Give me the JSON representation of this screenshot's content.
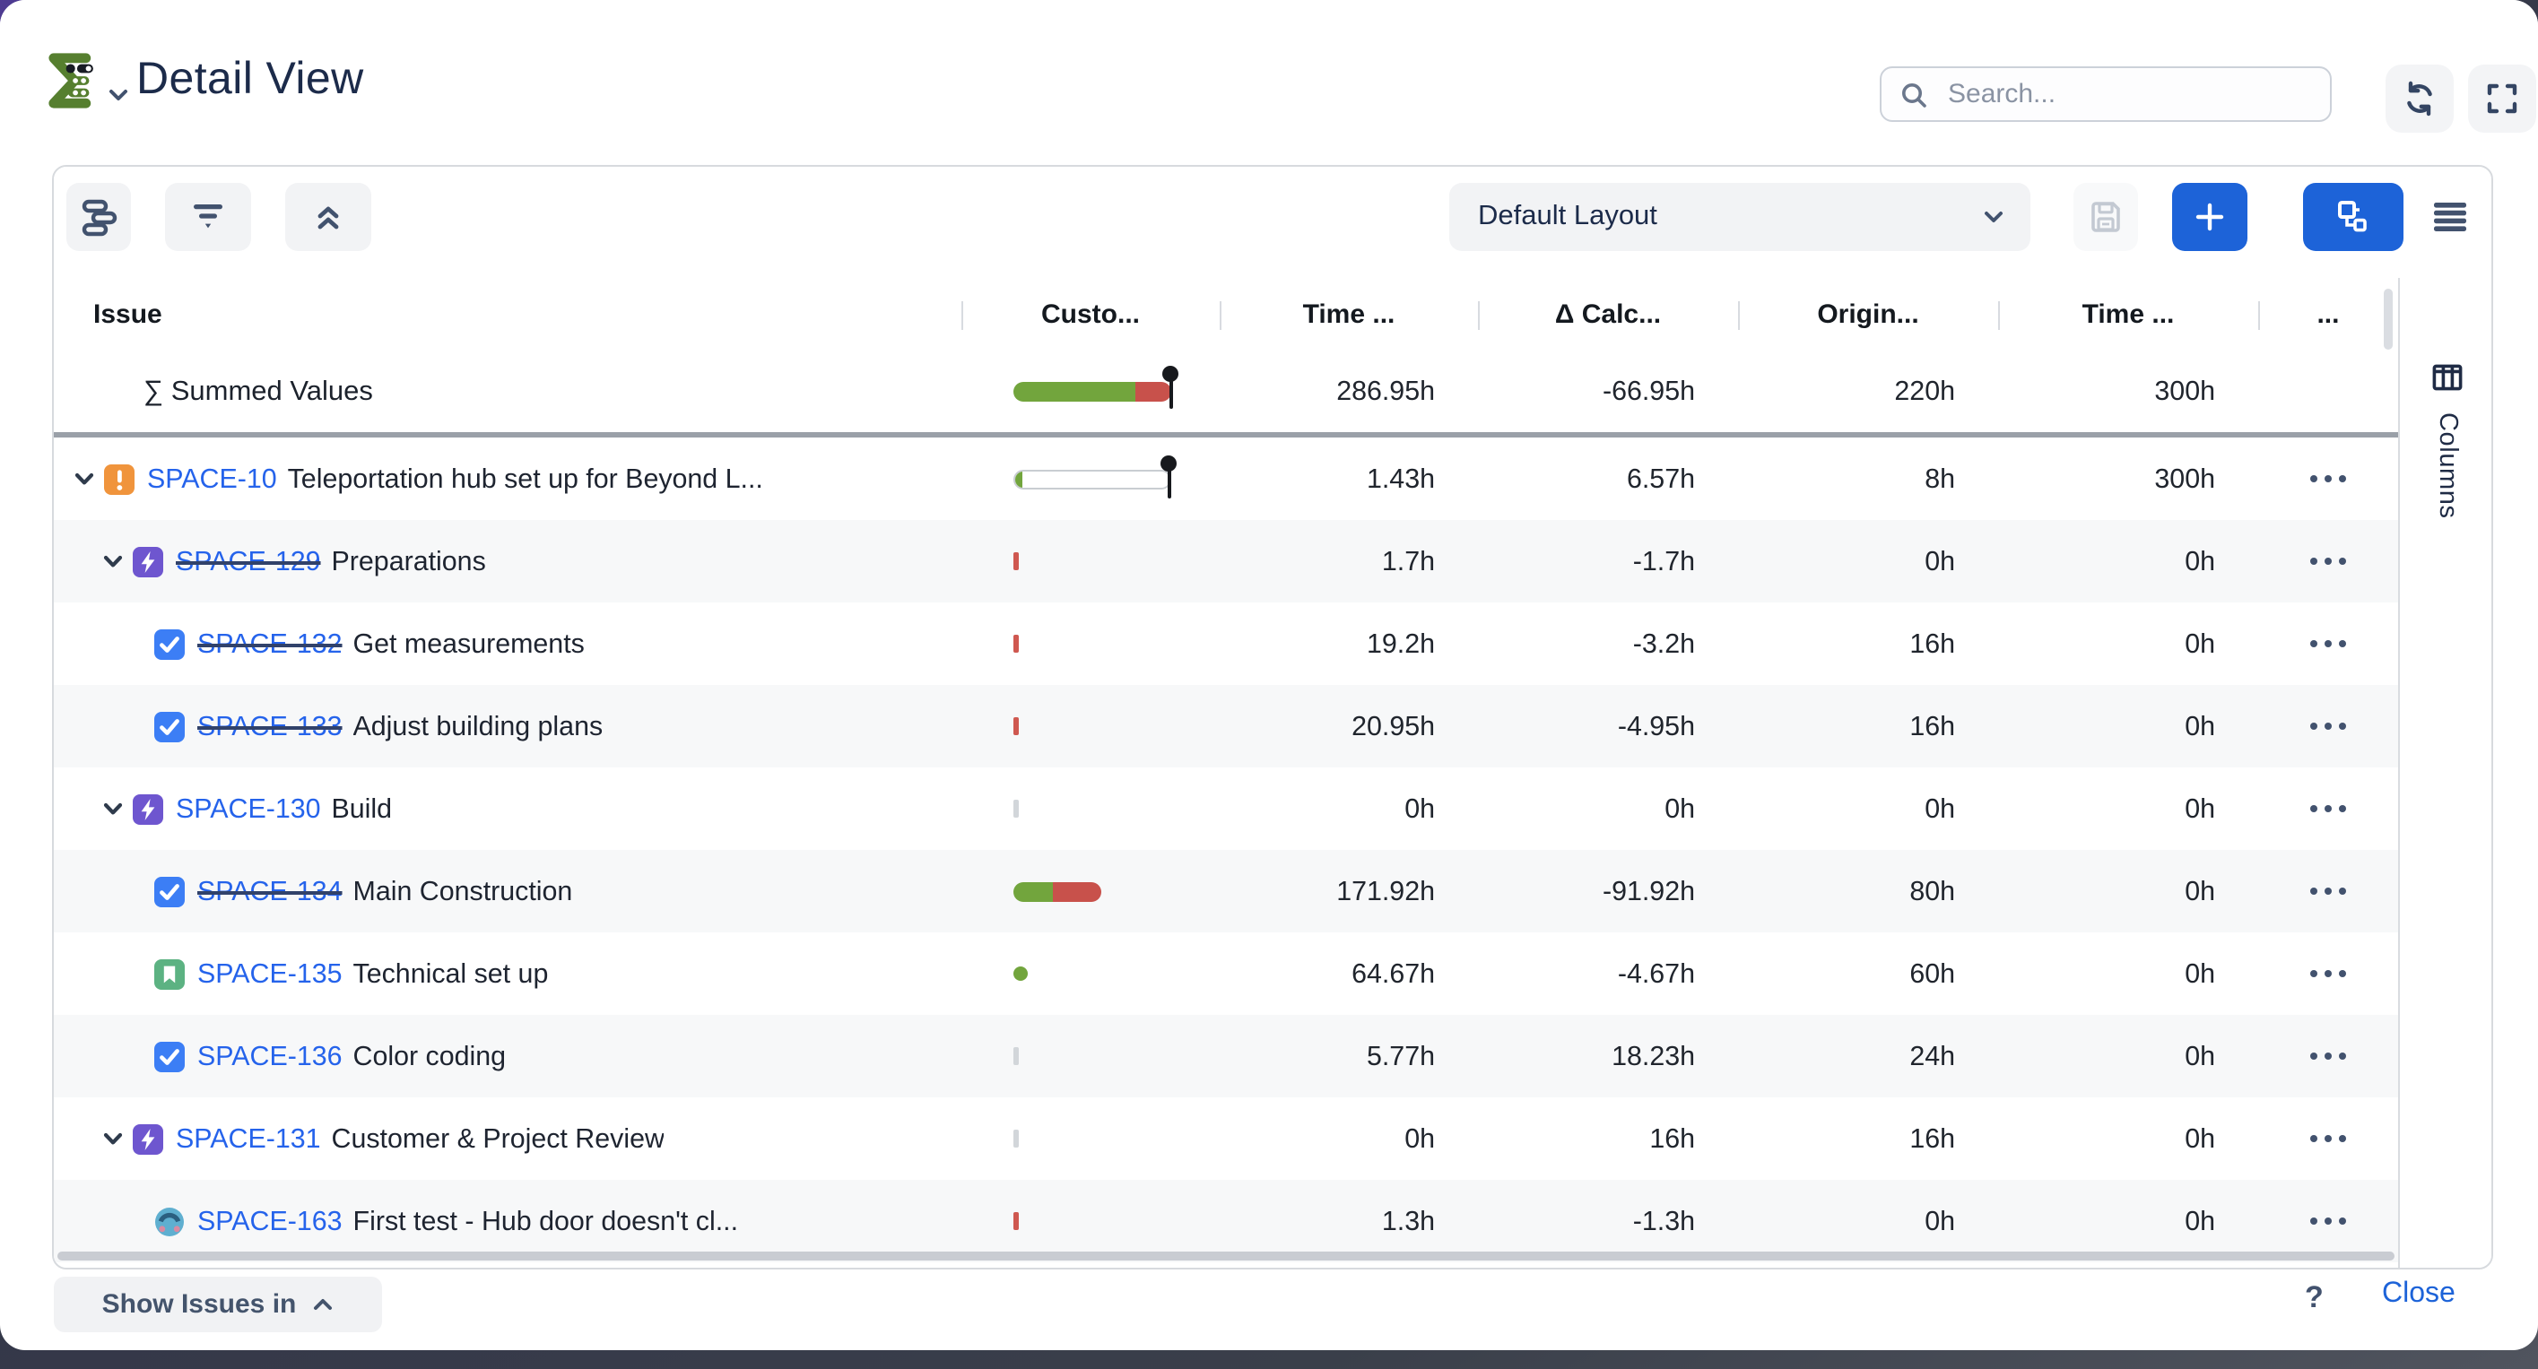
{
  "window": {
    "title": "Detail View"
  },
  "header": {
    "search_placeholder": "Search...",
    "icons": [
      "app-logo",
      "chevron-down-icon",
      "search-icon",
      "refresh-icon",
      "fullscreen-icon"
    ]
  },
  "toolbar": {
    "layout_selector_value": "Default Layout",
    "icons": [
      "group-by-icon",
      "filter-icon",
      "collapse-all-icon",
      "chevron-down-icon",
      "save-layout-icon",
      "add-item-icon",
      "tree-view-icon",
      "list-view-icon"
    ]
  },
  "table": {
    "columns": [
      "Issue",
      "Custo...",
      "Time ...",
      "Δ Calc...",
      "Origin...",
      "Time ...",
      "..."
    ],
    "summed_row": {
      "label": "∑ Summed Values",
      "bar": {
        "kind": "bar",
        "width": 88,
        "green_pct": 77,
        "red_pct": 23,
        "pin": true
      },
      "values": [
        "286.95h",
        "-66.95h",
        "220h",
        "300h"
      ]
    },
    "rows": [
      {
        "key": "SPACE-10",
        "summary": "Teleportation hub set up for Beyond L...",
        "level": 1,
        "icon": "warning",
        "done": false,
        "expandable": true,
        "indicator": {
          "kind": "bar",
          "width": 88,
          "green_pct": 5,
          "empty": true,
          "pin": true
        },
        "values": [
          "1.43h",
          "6.57h",
          "8h",
          "300h"
        ]
      },
      {
        "key": "SPACE-129",
        "summary": "Preparations",
        "level": 2,
        "icon": "bolt",
        "done": true,
        "expandable": true,
        "indicator": {
          "kind": "tick",
          "color": "red"
        },
        "values": [
          "1.7h",
          "-1.7h",
          "0h",
          "0h"
        ]
      },
      {
        "key": "SPACE-132",
        "summary": "Get measurements",
        "level": 3,
        "icon": "check",
        "done": true,
        "expandable": false,
        "indicator": {
          "kind": "tick",
          "color": "red"
        },
        "values": [
          "19.2h",
          "-3.2h",
          "16h",
          "0h"
        ]
      },
      {
        "key": "SPACE-133",
        "summary": "Adjust building plans",
        "level": 3,
        "icon": "check",
        "done": true,
        "expandable": false,
        "indicator": {
          "kind": "tick",
          "color": "red"
        },
        "values": [
          "20.95h",
          "-4.95h",
          "16h",
          "0h"
        ]
      },
      {
        "key": "SPACE-130",
        "summary": "Build",
        "level": 2,
        "icon": "bolt",
        "done": false,
        "expandable": true,
        "indicator": {
          "kind": "tick",
          "color": "gray"
        },
        "values": [
          "0h",
          "0h",
          "0h",
          "0h"
        ]
      },
      {
        "key": "SPACE-134",
        "summary": "Main Construction",
        "level": 3,
        "icon": "check",
        "done": true,
        "expandable": false,
        "indicator": {
          "kind": "bar",
          "width": 49,
          "green_pct": 45,
          "red_pct": 55
        },
        "values": [
          "171.92h",
          "-91.92h",
          "80h",
          "0h"
        ]
      },
      {
        "key": "SPACE-135",
        "summary": "Technical set up",
        "level": 3,
        "icon": "bookmark",
        "done": false,
        "expandable": false,
        "indicator": {
          "kind": "dot"
        },
        "values": [
          "64.67h",
          "-4.67h",
          "60h",
          "0h"
        ]
      },
      {
        "key": "SPACE-136",
        "summary": "Color coding",
        "level": 3,
        "icon": "check",
        "done": false,
        "expandable": false,
        "indicator": {
          "kind": "tick",
          "color": "gray"
        },
        "values": [
          "5.77h",
          "18.23h",
          "24h",
          "0h"
        ]
      },
      {
        "key": "SPACE-131",
        "summary": "Customer & Project Review",
        "level": 2,
        "icon": "bolt",
        "done": false,
        "expandable": true,
        "indicator": {
          "kind": "tick",
          "color": "gray"
        },
        "values": [
          "0h",
          "16h",
          "16h",
          "0h"
        ]
      },
      {
        "key": "SPACE-163",
        "summary": "First test - Hub door doesn't cl...",
        "level": 3,
        "icon": "custom",
        "done": false,
        "expandable": false,
        "indicator": {
          "kind": "tick",
          "color": "red"
        },
        "values": [
          "1.3h",
          "-1.3h",
          "0h",
          "0h"
        ]
      }
    ],
    "row_actions_icon": "ellipsis-icon"
  },
  "columns_sidebar": {
    "label": "Columns",
    "icon": "columns-icon"
  },
  "footer": {
    "show_issues_label": "Show Issues in",
    "help_label": "?",
    "close_label": "Close"
  },
  "colors": {
    "accent_blue": "#1d63d8",
    "link_blue": "#2563eb",
    "bar_green": "#72a53d",
    "bar_red": "#c8514b",
    "type_warning_orange": "#f0943c",
    "type_bolt_purple": "#6e56cf",
    "type_check_blue": "#3c7ef5",
    "type_bookmark_green": "#5cb282",
    "summed_separator": "#9aa0a8"
  }
}
